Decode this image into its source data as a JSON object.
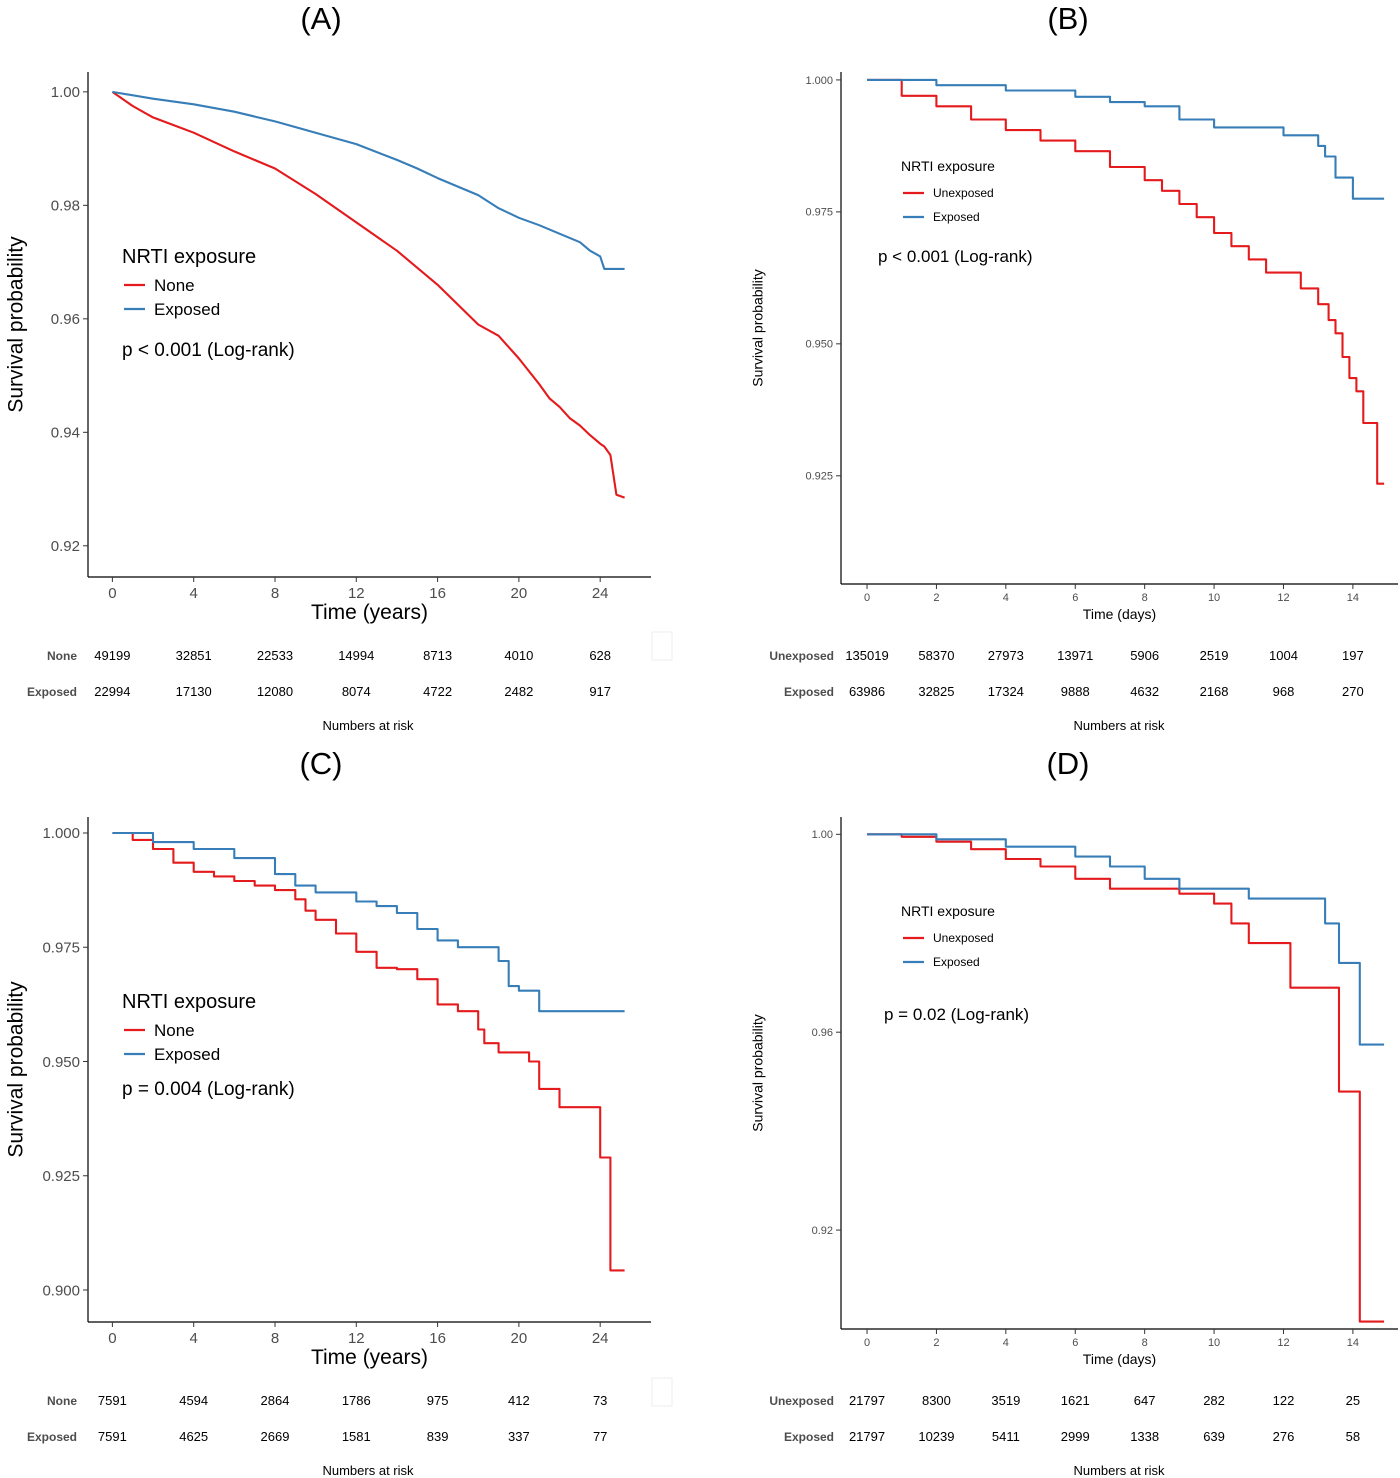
{
  "chart_data": [
    {
      "panel_label": "(A)",
      "type": "line",
      "xlabel": "Time (years)",
      "ylabel": "Survival probability",
      "xlim": [
        -1.2,
        26.5
      ],
      "ylim": [
        0.9145,
        1.0035
      ],
      "xticks": [
        "0",
        "4",
        "8",
        "12",
        "16",
        "20",
        "24"
      ],
      "xtick_values": [
        0,
        4,
        8,
        12,
        16,
        20,
        24
      ],
      "yticks": [
        "1.00",
        "0.98",
        "0.96",
        "0.94",
        "0.92"
      ],
      "ytick_values": [
        1.0,
        0.98,
        0.96,
        0.94,
        0.92
      ],
      "legend": {
        "title": "NRTI exposure",
        "position": "left-middle"
      },
      "annotation": "p < 0.001 (Log-rank)",
      "series": [
        {
          "name": "None",
          "color": "#E41A1C",
          "x": [
            0,
            1,
            2,
            4,
            6,
            8,
            10,
            12,
            14,
            16,
            17,
            18,
            19,
            20,
            21,
            21.5,
            22,
            22.5,
            23,
            23.5,
            24,
            24.2,
            24.5,
            24.8,
            25.2
          ],
          "y": [
            1.0,
            0.9975,
            0.9955,
            0.9928,
            0.9895,
            0.9865,
            0.982,
            0.977,
            0.972,
            0.966,
            0.9625,
            0.959,
            0.957,
            0.953,
            0.9485,
            0.946,
            0.9445,
            0.9425,
            0.9412,
            0.9395,
            0.938,
            0.9375,
            0.936,
            0.929,
            0.9285
          ],
          "step": false
        },
        {
          "name": "Exposed",
          "color": "#377EB8",
          "x": [
            0,
            2,
            4,
            6,
            8,
            10,
            12,
            14,
            15,
            16,
            18,
            19,
            20,
            21,
            22,
            23,
            23.5,
            24,
            24.2,
            25.2
          ],
          "y": [
            1.0,
            0.9988,
            0.9978,
            0.9965,
            0.9948,
            0.9928,
            0.9908,
            0.988,
            0.9865,
            0.9848,
            0.9818,
            0.9795,
            0.9778,
            0.9765,
            0.975,
            0.9735,
            0.972,
            0.971,
            0.9688,
            0.9688
          ],
          "step": false
        }
      ],
      "risk_table": {
        "title": "Numbers at risk",
        "times": [
          0,
          4,
          8,
          12,
          16,
          20,
          24
        ],
        "rows": [
          {
            "label": "None",
            "values": [
              "49199",
              "32851",
              "22533",
              "14994",
              "8713",
              "4010",
              "628"
            ]
          },
          {
            "label": "Exposed",
            "values": [
              "22994",
              "17130",
              "12080",
              "8074",
              "4722",
              "2482",
              "917"
            ]
          }
        ]
      }
    },
    {
      "panel_label": "(B)",
      "type": "line",
      "xlabel": "Time (days)",
      "ylabel": "Survival probability",
      "xlim": [
        -0.75,
        15.3
      ],
      "ylim": [
        0.9045,
        1.0015
      ],
      "xticks": [
        "0",
        "2",
        "4",
        "6",
        "8",
        "10",
        "12",
        "14"
      ],
      "xtick_values": [
        0,
        2,
        4,
        6,
        8,
        10,
        12,
        14
      ],
      "yticks": [
        "1.000",
        "0.975",
        "0.950",
        "0.925"
      ],
      "ytick_values": [
        1.0,
        0.975,
        0.95,
        0.925
      ],
      "legend": {
        "title": "NRTI exposure",
        "position": "top-left"
      },
      "annotation": "p < 0.001 (Log-rank)",
      "series": [
        {
          "name": "Unexposed",
          "color": "#E41A1C",
          "x": [
            0,
            1,
            2,
            3,
            4,
            5,
            6,
            7,
            8,
            8.5,
            9,
            9.5,
            10,
            10.5,
            11,
            11.5,
            12,
            12.5,
            13,
            13.3,
            13.5,
            13.7,
            13.9,
            14.1,
            14.3,
            14.7,
            14.9
          ],
          "y": [
            1.0,
            0.997,
            0.995,
            0.9925,
            0.9905,
            0.9885,
            0.9865,
            0.9835,
            0.981,
            0.979,
            0.9765,
            0.974,
            0.971,
            0.9685,
            0.966,
            0.9635,
            0.9635,
            0.9605,
            0.9575,
            0.9545,
            0.952,
            0.9475,
            0.9435,
            0.941,
            0.935,
            0.9235,
            0.9235
          ],
          "step": true
        },
        {
          "name": "Exposed",
          "color": "#377EB8",
          "x": [
            0,
            2,
            4,
            6,
            7,
            8,
            9,
            10,
            11,
            12,
            12.5,
            12.8,
            13,
            13.2,
            13.5,
            14,
            14.3,
            14.9
          ],
          "y": [
            1.0,
            0.999,
            0.998,
            0.9968,
            0.9958,
            0.995,
            0.9925,
            0.991,
            0.991,
            0.9895,
            0.9895,
            0.9895,
            0.9875,
            0.9855,
            0.9815,
            0.9775,
            0.9775,
            0.9775
          ],
          "step": true
        }
      ],
      "risk_table": {
        "title": "Numbers at risk",
        "times": [
          0,
          2,
          4,
          6,
          8,
          10,
          12,
          14
        ],
        "rows": [
          {
            "label": "Unexposed",
            "values": [
              "135019",
              "58370",
              "27973",
              "13971",
              "5906",
              "2519",
              "1004",
              "197"
            ]
          },
          {
            "label": "Exposed",
            "values": [
              "63986",
              "32825",
              "17324",
              "9888",
              "4632",
              "2168",
              "968",
              "270"
            ]
          }
        ]
      }
    },
    {
      "panel_label": "(C)",
      "type": "line",
      "xlabel": "Time (years)",
      "ylabel": "Survival probability",
      "xlim": [
        -1.2,
        26.5
      ],
      "ylim": [
        0.893,
        1.0035
      ],
      "xticks": [
        "0",
        "4",
        "8",
        "12",
        "16",
        "20",
        "24"
      ],
      "xtick_values": [
        0,
        4,
        8,
        12,
        16,
        20,
        24
      ],
      "yticks": [
        "1.000",
        "0.975",
        "0.950",
        "0.925",
        "0.900"
      ],
      "ytick_values": [
        1.0,
        0.975,
        0.95,
        0.925,
        0.9
      ],
      "legend": {
        "title": "NRTI exposure",
        "position": "left-middle"
      },
      "annotation": "p = 0.004 (Log-rank)",
      "series": [
        {
          "name": "None",
          "color": "#E41A1C",
          "x": [
            0,
            1,
            2,
            3,
            4,
            5,
            6,
            7,
            8,
            9,
            9.5,
            10,
            11,
            12,
            13,
            14,
            15,
            16,
            17,
            18,
            18.3,
            19,
            20,
            20.5,
            21,
            22,
            23,
            24,
            24.5,
            25.2
          ],
          "y": [
            1.0,
            0.9985,
            0.9965,
            0.9935,
            0.9915,
            0.9905,
            0.9895,
            0.9885,
            0.9875,
            0.9855,
            0.983,
            0.981,
            0.978,
            0.974,
            0.9705,
            0.9702,
            0.968,
            0.9625,
            0.961,
            0.957,
            0.954,
            0.952,
            0.952,
            0.95,
            0.944,
            0.94,
            0.94,
            0.929,
            0.9043,
            0.9043
          ],
          "step": true
        },
        {
          "name": "Exposed",
          "color": "#377EB8",
          "x": [
            0,
            2,
            4,
            6,
            8,
            9,
            10,
            12,
            13,
            14,
            15,
            16,
            17,
            18,
            19,
            19.5,
            20,
            21,
            22,
            23,
            24,
            25.2
          ],
          "y": [
            1.0,
            0.998,
            0.9965,
            0.9945,
            0.991,
            0.9885,
            0.987,
            0.985,
            0.984,
            0.9825,
            0.979,
            0.9765,
            0.975,
            0.975,
            0.972,
            0.9665,
            0.9655,
            0.961,
            0.961,
            0.961,
            0.961,
            0.961
          ],
          "step": true
        }
      ],
      "risk_table": {
        "title": "Numbers at risk",
        "times": [
          0,
          4,
          8,
          12,
          16,
          20,
          24
        ],
        "rows": [
          {
            "label": "None",
            "values": [
              "7591",
              "4594",
              "2864",
              "1786",
              "975",
              "412",
              "73"
            ]
          },
          {
            "label": "Exposed",
            "values": [
              "7591",
              "4625",
              "2669",
              "1581",
              "839",
              "337",
              "77"
            ]
          }
        ]
      }
    },
    {
      "panel_label": "(D)",
      "type": "line",
      "xlabel": "Time (days)",
      "ylabel": "Survival probability",
      "xlim": [
        -0.75,
        15.3
      ],
      "ylim": [
        0.9,
        1.0035
      ],
      "xticks": [
        "0",
        "2",
        "4",
        "6",
        "8",
        "10",
        "12",
        "14"
      ],
      "xtick_values": [
        0,
        2,
        4,
        6,
        8,
        10,
        12,
        14
      ],
      "yticks": [
        "1.00",
        "0.96",
        "0.92"
      ],
      "ytick_values": [
        1.0,
        0.96,
        0.92
      ],
      "legend": {
        "title": "NRTI exposure",
        "position": "top-left"
      },
      "annotation": "p = 0.02 (Log-rank)",
      "series": [
        {
          "name": "Unexposed",
          "color": "#E41A1C",
          "x": [
            0,
            1,
            2,
            3,
            4,
            5,
            6,
            7,
            8,
            9,
            10,
            10.5,
            11,
            12,
            12.2,
            13,
            13.6,
            14.2,
            14.9
          ],
          "y": [
            1.0,
            0.9995,
            0.9985,
            0.997,
            0.995,
            0.9935,
            0.991,
            0.989,
            0.989,
            0.988,
            0.986,
            0.982,
            0.978,
            0.978,
            0.969,
            0.969,
            0.948,
            0.9015,
            0.9015
          ],
          "step": true
        },
        {
          "name": "Exposed",
          "color": "#377EB8",
          "x": [
            0,
            2,
            4,
            6,
            7,
            8,
            9,
            10,
            11,
            12,
            12.7,
            13.2,
            13.6,
            14.2,
            14.9
          ],
          "y": [
            1.0,
            0.999,
            0.9975,
            0.9955,
            0.9935,
            0.991,
            0.989,
            0.989,
            0.987,
            0.987,
            0.987,
            0.982,
            0.974,
            0.9575,
            0.9575
          ],
          "step": true
        }
      ],
      "risk_table": {
        "title": "Numbers at risk",
        "times": [
          0,
          2,
          4,
          6,
          8,
          10,
          12,
          14
        ],
        "rows": [
          {
            "label": "Unexposed",
            "values": [
              "21797",
              "8300",
              "3519",
              "1621",
              "647",
              "282",
              "122",
              "25"
            ]
          },
          {
            "label": "Exposed",
            "values": [
              "21797",
              "10239",
              "5411",
              "2999",
              "1338",
              "639",
              "276",
              "58"
            ]
          }
        ]
      }
    }
  ]
}
